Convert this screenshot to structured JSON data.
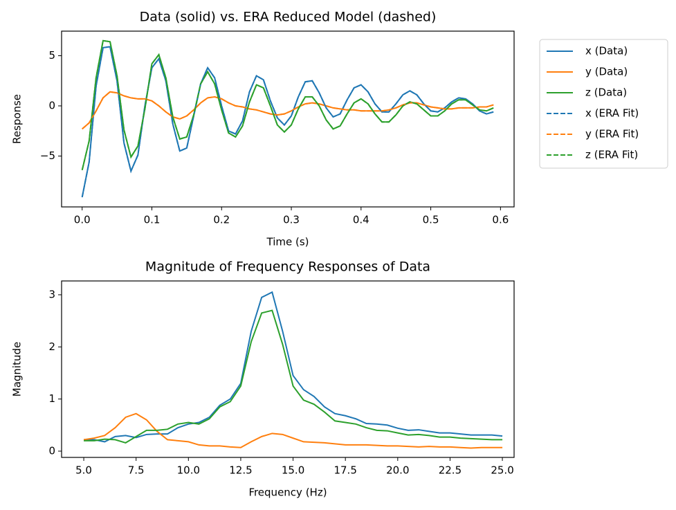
{
  "chart_data": [
    {
      "type": "line",
      "title": "Data (solid) vs. ERA Reduced Model (dashed)",
      "xlabel": "Time (s)",
      "ylabel": "Response",
      "x": [
        0,
        0.01,
        0.02,
        0.03,
        0.04,
        0.05,
        0.06,
        0.07,
        0.08,
        0.09,
        0.1,
        0.11,
        0.12,
        0.13,
        0.14,
        0.15,
        0.16,
        0.17,
        0.18,
        0.19,
        0.2,
        0.21,
        0.22,
        0.23,
        0.24,
        0.25,
        0.26,
        0.27,
        0.28,
        0.29,
        0.3,
        0.31,
        0.32,
        0.33,
        0.34,
        0.35,
        0.36,
        0.37,
        0.38,
        0.39,
        0.4,
        0.41,
        0.42,
        0.43,
        0.44,
        0.45,
        0.46,
        0.47,
        0.48,
        0.49,
        0.5,
        0.51,
        0.52,
        0.53,
        0.54,
        0.55,
        0.56,
        0.57,
        0.58,
        0.59
      ],
      "series": [
        {
          "name": "x (Data)",
          "color": "#1f77b4",
          "style": "solid",
          "values": [
            -9.1,
            -5.6,
            2,
            5.8,
            5.9,
            2.5,
            -3.7,
            -6.5,
            -4.9,
            0,
            3.8,
            4.7,
            2.5,
            -1.8,
            -4.5,
            -4.2,
            -1,
            2.2,
            3.8,
            2.8,
            0,
            -2.5,
            -2.8,
            -1.5,
            1.4,
            3,
            2.6,
            0.5,
            -1.2,
            -1.9,
            -1,
            0.9,
            2.4,
            2.5,
            1.3,
            -0.2,
            -1.1,
            -0.8,
            0.6,
            1.8,
            2.1,
            1.4,
            0.2,
            -0.6,
            -0.6,
            0.2,
            1.1,
            1.5,
            1.1,
            0.2,
            -0.5,
            -0.6,
            -0.2,
            0.4,
            0.8,
            0.7,
            0.2,
            -0.5,
            -0.8,
            -0.6
          ]
        },
        {
          "name": "y (Data)",
          "color": "#ff7f0e",
          "style": "solid",
          "values": [
            -2.3,
            -1.7,
            -0.5,
            0.8,
            1.4,
            1.3,
            1,
            0.8,
            0.7,
            0.7,
            0.5,
            0,
            -0.6,
            -1.1,
            -1.3,
            -1,
            -0.4,
            0.3,
            0.8,
            0.9,
            0.7,
            0.3,
            0,
            -0.1,
            -0.3,
            -0.4,
            -0.6,
            -0.8,
            -0.9,
            -0.8,
            -0.5,
            -0.1,
            0.2,
            0.3,
            0.2,
            0,
            -0.2,
            -0.3,
            -0.4,
            -0.4,
            -0.5,
            -0.5,
            -0.5,
            -0.5,
            -0.4,
            -0.2,
            0.1,
            0.3,
            0.3,
            0.1,
            -0.1,
            -0.2,
            -0.3,
            -0.3,
            -0.2,
            -0.2,
            -0.2,
            -0.1,
            -0.1,
            0.1
          ]
        },
        {
          "name": "z (Data)",
          "color": "#2ca02c",
          "style": "solid",
          "values": [
            -6.4,
            -3.5,
            2.8,
            6.5,
            6.4,
            3,
            -2.4,
            -5.1,
            -4,
            -0.3,
            4.2,
            5.1,
            2.8,
            -1.1,
            -3.3,
            -3.1,
            -0.9,
            2.2,
            3.4,
            2.2,
            -0.4,
            -2.7,
            -3.1,
            -2,
            0.4,
            2.1,
            1.8,
            0,
            -1.9,
            -2.6,
            -1.9,
            -0.3,
            0.9,
            0.9,
            0,
            -1.4,
            -2.3,
            -2,
            -0.8,
            0.3,
            0.7,
            0.2,
            -0.8,
            -1.6,
            -1.6,
            -0.9,
            0,
            0.4,
            0.2,
            -0.4,
            -1,
            -1,
            -0.5,
            0.2,
            0.6,
            0.6,
            0.1,
            -0.4,
            -0.5,
            -0.2
          ]
        },
        {
          "name": "x (ERA Fit)",
          "color": "#1f77b4",
          "style": "dashed",
          "values": [
            -9.1,
            -5.6,
            2,
            5.8,
            5.9,
            2.5,
            -3.7,
            -6.5,
            -4.9,
            0,
            3.8,
            4.7,
            2.5,
            -1.8,
            -4.5,
            -4.2,
            -1,
            2.2,
            3.8,
            2.8,
            0,
            -2.5,
            -2.8,
            -1.5,
            1.4,
            3,
            2.6,
            0.5,
            -1.2,
            -1.9,
            -1,
            0.9,
            2.4,
            2.5,
            1.3,
            -0.2,
            -1.1,
            -0.8,
            0.6,
            1.8,
            2.1,
            1.4,
            0.2,
            -0.6,
            -0.6,
            0.2,
            1.1,
            1.5,
            1.1,
            0.2,
            -0.5,
            -0.6,
            -0.2,
            0.4,
            0.8,
            0.7,
            0.2,
            -0.5,
            -0.8,
            -0.6
          ]
        },
        {
          "name": "y (ERA Fit)",
          "color": "#ff7f0e",
          "style": "dashed",
          "values": [
            -2.3,
            -1.7,
            -0.5,
            0.8,
            1.4,
            1.3,
            1,
            0.8,
            0.7,
            0.7,
            0.5,
            0,
            -0.6,
            -1.1,
            -1.3,
            -1,
            -0.4,
            0.3,
            0.8,
            0.9,
            0.7,
            0.3,
            0,
            -0.1,
            -0.3,
            -0.4,
            -0.6,
            -0.8,
            -0.9,
            -0.8,
            -0.5,
            -0.1,
            0.2,
            0.3,
            0.2,
            0,
            -0.2,
            -0.3,
            -0.4,
            -0.4,
            -0.5,
            -0.5,
            -0.5,
            -0.5,
            -0.4,
            -0.2,
            0.1,
            0.3,
            0.3,
            0.1,
            -0.1,
            -0.2,
            -0.3,
            -0.3,
            -0.2,
            -0.2,
            -0.2,
            -0.1,
            -0.1,
            0.1
          ]
        },
        {
          "name": "z (ERA Fit)",
          "color": "#2ca02c",
          "style": "dashed",
          "values": [
            -6.4,
            -3.5,
            2.8,
            6.5,
            6.4,
            3,
            -2.4,
            -5.1,
            -4,
            -0.3,
            4.2,
            5.1,
            2.8,
            -1.1,
            -3.3,
            -3.1,
            -0.9,
            2.2,
            3.4,
            2.2,
            -0.4,
            -2.7,
            -3.1,
            -2,
            0.4,
            2.1,
            1.8,
            0,
            -1.9,
            -2.6,
            -1.9,
            -0.3,
            0.9,
            0.9,
            0,
            -1.4,
            -2.3,
            -2,
            -0.8,
            0.3,
            0.7,
            0.2,
            -0.8,
            -1.6,
            -1.6,
            -0.9,
            0,
            0.4,
            0.2,
            -0.4,
            -1,
            -1,
            -0.5,
            0.2,
            0.6,
            0.6,
            0.1,
            -0.4,
            -0.5,
            -0.2
          ]
        }
      ],
      "xlim": [
        -0.0295,
        0.6195
      ],
      "ylim": [
        -10.07,
        7.45
      ],
      "xticks": [
        {
          "value": 0,
          "label": "0.0"
        },
        0.1,
        0.2,
        0.3,
        0.4,
        0.5,
        0.6
      ],
      "yticks": [
        {
          "value": -5,
          "label": "−5"
        },
        0,
        5
      ],
      "legend": "outside"
    },
    {
      "type": "line",
      "title": "Magnitude of Frequency Responses of Data",
      "xlabel": "Frequency (Hz)",
      "ylabel": "Magnitude",
      "x": [
        5,
        5.5,
        6,
        6.5,
        7,
        7.5,
        8,
        8.5,
        9,
        9.5,
        10,
        10.5,
        11,
        11.5,
        12,
        12.5,
        13,
        13.5,
        14,
        14.5,
        15,
        15.5,
        16,
        16.5,
        17,
        17.5,
        18,
        18.5,
        19,
        19.5,
        20,
        20.5,
        21,
        21.5,
        22,
        22.5,
        23,
        23.5,
        24,
        24.5,
        25
      ],
      "series": [
        {
          "name": "x",
          "color": "#1f77b4",
          "style": "solid",
          "values": [
            0.22,
            0.22,
            0.18,
            0.28,
            0.3,
            0.26,
            0.32,
            0.33,
            0.33,
            0.45,
            0.52,
            0.55,
            0.65,
            0.88,
            1,
            1.3,
            2.3,
            2.95,
            3.05,
            2.3,
            1.45,
            1.18,
            1.05,
            0.85,
            0.72,
            0.68,
            0.62,
            0.53,
            0.52,
            0.5,
            0.44,
            0.4,
            0.41,
            0.38,
            0.35,
            0.35,
            0.33,
            0.31,
            0.31,
            0.31,
            0.29
          ]
        },
        {
          "name": "y",
          "color": "#ff7f0e",
          "style": "solid",
          "values": [
            0.22,
            0.25,
            0.3,
            0.45,
            0.65,
            0.72,
            0.6,
            0.38,
            0.22,
            0.2,
            0.18,
            0.12,
            0.1,
            0.1,
            0.08,
            0.07,
            0.18,
            0.28,
            0.34,
            0.32,
            0.25,
            0.18,
            0.17,
            0.16,
            0.14,
            0.12,
            0.12,
            0.12,
            0.11,
            0.1,
            0.1,
            0.09,
            0.08,
            0.09,
            0.08,
            0.08,
            0.07,
            0.06,
            0.07,
            0.07,
            0.07
          ]
        },
        {
          "name": "z",
          "color": "#2ca02c",
          "style": "solid",
          "values": [
            0.2,
            0.2,
            0.23,
            0.22,
            0.16,
            0.28,
            0.4,
            0.4,
            0.42,
            0.52,
            0.55,
            0.52,
            0.62,
            0.85,
            0.95,
            1.25,
            2.1,
            2.65,
            2.7,
            2.05,
            1.25,
            0.98,
            0.9,
            0.75,
            0.58,
            0.55,
            0.52,
            0.45,
            0.4,
            0.39,
            0.35,
            0.31,
            0.32,
            0.3,
            0.27,
            0.27,
            0.25,
            0.24,
            0.23,
            0.22,
            0.22
          ]
        }
      ],
      "xlim": [
        3.94,
        25.56
      ],
      "ylim": [
        -0.12,
        3.265
      ],
      "xticks": [
        {
          "value": 5,
          "label": "5.0"
        },
        7.5,
        {
          "value": 10,
          "label": "10.0"
        },
        12.5,
        {
          "value": 15,
          "label": "15.0"
        },
        17.5,
        {
          "value": 20,
          "label": "20.0"
        },
        22.5,
        {
          "value": 25,
          "label": "25.0"
        }
      ],
      "yticks": [
        0,
        1,
        2,
        3
      ]
    }
  ]
}
